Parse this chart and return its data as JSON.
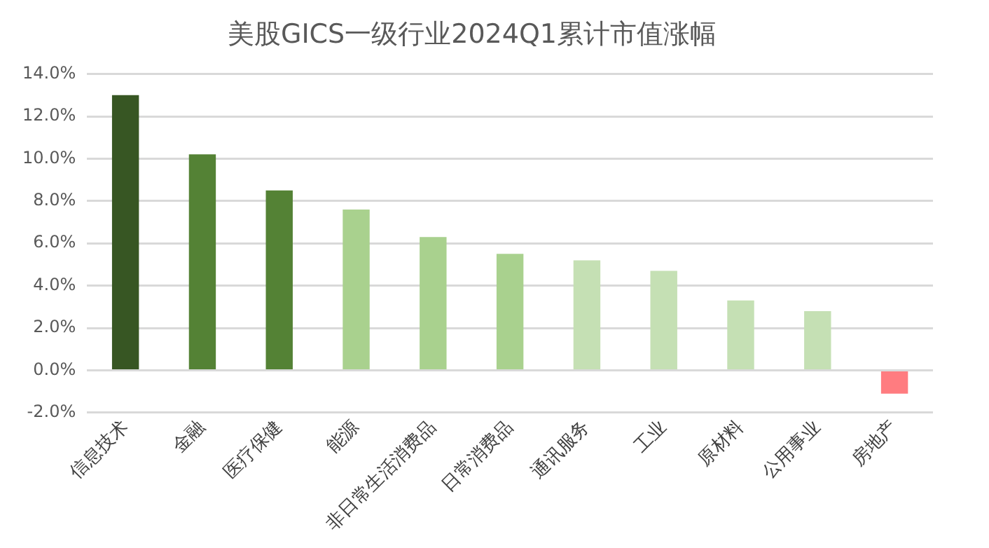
{
  "chart_data": {
    "type": "bar",
    "title": "美股GICS一级行业2024Q1累计市值涨幅",
    "categories": [
      "信息技术",
      "金融",
      "医疗保健",
      "能源",
      "非日常生活消费品",
      "日常消费品",
      "通讯服务",
      "工业",
      "原材料",
      "公用事业",
      "房地产"
    ],
    "values": [
      13.0,
      10.2,
      8.5,
      7.6,
      6.3,
      5.5,
      5.2,
      4.7,
      3.3,
      2.8,
      -1.1
    ],
    "colors": [
      "#375623",
      "#548235",
      "#548235",
      "#a9d18e",
      "#a9d18e",
      "#a9d18e",
      "#c5e0b4",
      "#c5e0b4",
      "#c5e0b4",
      "#c5e0b4",
      "#ff7c80"
    ],
    "ylim": [
      -2,
      14
    ],
    "yticks": [
      {
        "value": -2,
        "label": "-2.0%"
      },
      {
        "value": 0,
        "label": "0.0%"
      },
      {
        "value": 2,
        "label": "2.0%"
      },
      {
        "value": 4,
        "label": "4.0%"
      },
      {
        "value": 6,
        "label": "6.0%"
      },
      {
        "value": 8,
        "label": "8.0%"
      },
      {
        "value": 10,
        "label": "10.0%"
      },
      {
        "value": 12,
        "label": "12.0%"
      },
      {
        "value": 14,
        "label": "14.0%"
      }
    ],
    "grid": "y",
    "legend": false
  }
}
